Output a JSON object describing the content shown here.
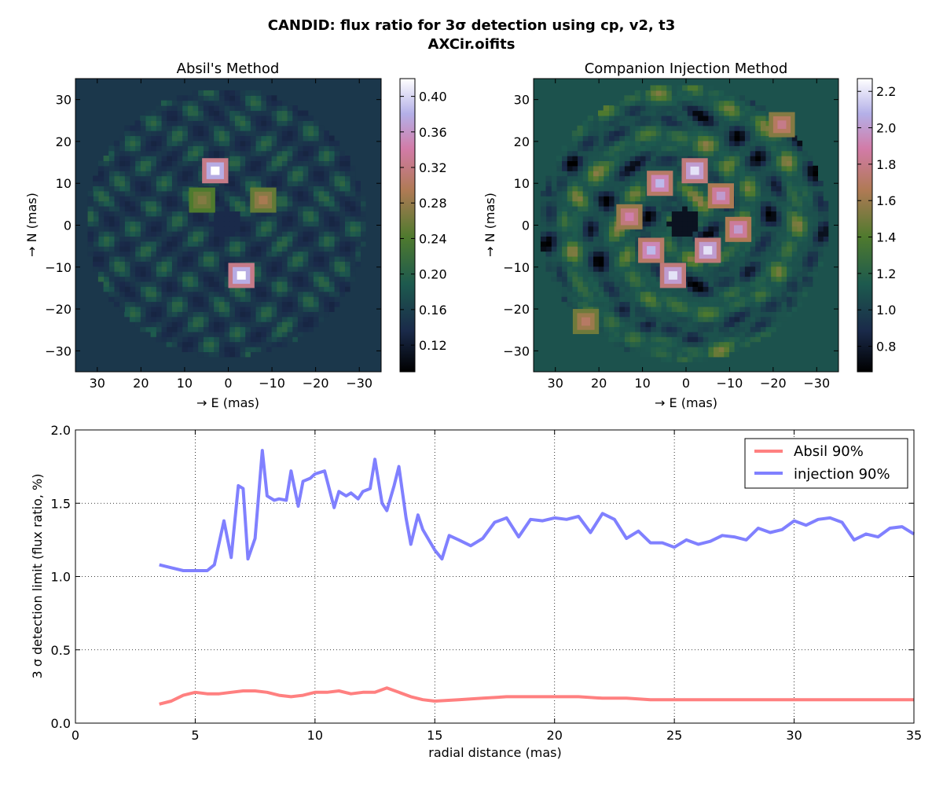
{
  "figure": {
    "suptitle_line1": "CANDID: flux ratio for 3σ detection using cp, v2, t3",
    "suptitle_line2": "AXCir.oifits"
  },
  "chart_data": [
    {
      "type": "heatmap",
      "title": "Absil's Method",
      "xlabel": "→ E (mas)",
      "ylabel": "→ N (mas)",
      "xlim": [
        35,
        -35
      ],
      "ylim": [
        -35,
        35
      ],
      "xticks": [
        30,
        20,
        10,
        0,
        -10,
        -20,
        -30
      ],
      "yticks": [
        30,
        20,
        10,
        0,
        -10,
        -20,
        -30
      ],
      "colorbar": {
        "range": [
          0.09,
          0.42
        ],
        "ticks": [
          0.12,
          0.16,
          0.2,
          0.24,
          0.28,
          0.32,
          0.36,
          0.4
        ]
      },
      "colormap": [
        "#000000",
        "#1a2a4a",
        "#1d5a4e",
        "#4f7a2e",
        "#b07a55",
        "#d27ba7",
        "#b4b0e8",
        "#ffffff"
      ],
      "background_value": 0.15,
      "field_radius_mas": 32,
      "inner_hole_radius_mas": 3.5,
      "peaks": [
        {
          "x": 3,
          "y": 13,
          "v": 0.42
        },
        {
          "x": -3,
          "y": -12,
          "v": 0.42
        },
        {
          "x": -8,
          "y": 6,
          "v": 0.29
        },
        {
          "x": 6,
          "y": 6,
          "v": 0.27
        }
      ]
    },
    {
      "type": "heatmap",
      "title": "Companion Injection Method",
      "xlabel": "→ E (mas)",
      "ylabel": "→ N (mas)",
      "xlim": [
        35,
        -35
      ],
      "ylim": [
        -35,
        35
      ],
      "xticks": [
        30,
        20,
        10,
        0,
        -10,
        -20,
        -30
      ],
      "yticks": [
        30,
        20,
        10,
        0,
        -10,
        -20,
        -30
      ],
      "colorbar": {
        "range": [
          0.66,
          2.27
        ],
        "ticks": [
          0.8,
          1.0,
          1.2,
          1.4,
          1.6,
          1.8,
          2.0,
          2.2
        ]
      },
      "colormap": [
        "#000000",
        "#1a2a4a",
        "#1d5a4e",
        "#4f7a2e",
        "#b07a55",
        "#d27ba7",
        "#b4b0e8",
        "#ffffff"
      ],
      "background_value": 1.1,
      "field_radius_mas": 33,
      "inner_hole_radius_mas": 3.5,
      "peaks": [
        {
          "x": -2,
          "y": 13,
          "v": 2.2
        },
        {
          "x": 6,
          "y": 10,
          "v": 2.1
        },
        {
          "x": -8,
          "y": 7,
          "v": 2.0
        },
        {
          "x": 13,
          "y": 2,
          "v": 1.9
        },
        {
          "x": -12,
          "y": -1,
          "v": 2.0
        },
        {
          "x": 8,
          "y": -6,
          "v": 2.1
        },
        {
          "x": -5,
          "y": -6,
          "v": 2.2
        },
        {
          "x": 3,
          "y": -12,
          "v": 2.2
        },
        {
          "x": -22,
          "y": 24,
          "v": 1.8
        },
        {
          "x": 23,
          "y": -23,
          "v": 1.7
        }
      ]
    },
    {
      "type": "line",
      "xlabel": "radial distance (mas)",
      "ylabel": "3 σ detection limit (flux ratio, %)",
      "xlim": [
        0,
        35
      ],
      "ylim": [
        0.0,
        2.0
      ],
      "xticks": [
        "0",
        "5",
        "10",
        "15",
        "20",
        "25",
        "30",
        "35"
      ],
      "yticks": [
        "0.0",
        "0.5",
        "1.0",
        "1.5",
        "2.0"
      ],
      "grid": true,
      "legend_position": "top-right",
      "series": [
        {
          "name": "Absil 90%",
          "color": "#ff8080",
          "x": [
            3.5,
            4.0,
            4.5,
            5.0,
            5.5,
            6.0,
            6.5,
            7.0,
            7.5,
            8.0,
            8.5,
            9.0,
            9.5,
            10.0,
            10.5,
            11.0,
            11.5,
            12.0,
            12.5,
            13.0,
            13.5,
            14.0,
            14.5,
            15.0,
            16.0,
            17.0,
            18.0,
            19.0,
            20.0,
            21.0,
            22.0,
            23.0,
            24.0,
            25.0,
            26.0,
            27.0,
            28.0,
            29.0,
            30.0,
            31.0,
            32.0,
            33.0,
            34.0,
            35.0
          ],
          "values": [
            0.13,
            0.15,
            0.19,
            0.21,
            0.2,
            0.2,
            0.21,
            0.22,
            0.22,
            0.21,
            0.19,
            0.18,
            0.19,
            0.21,
            0.21,
            0.22,
            0.2,
            0.21,
            0.21,
            0.24,
            0.21,
            0.18,
            0.16,
            0.15,
            0.16,
            0.17,
            0.18,
            0.18,
            0.18,
            0.18,
            0.17,
            0.17,
            0.16,
            0.16,
            0.16,
            0.16,
            0.16,
            0.16,
            0.16,
            0.16,
            0.16,
            0.16,
            0.16,
            0.16
          ]
        },
        {
          "name": "injection 90%",
          "color": "#8080ff",
          "x": [
            3.5,
            4.0,
            4.5,
            5.0,
            5.5,
            5.8,
            6.2,
            6.5,
            6.8,
            7.0,
            7.2,
            7.5,
            7.8,
            8.0,
            8.3,
            8.5,
            8.8,
            9.0,
            9.3,
            9.5,
            9.8,
            10.0,
            10.4,
            10.8,
            11.0,
            11.3,
            11.5,
            11.8,
            12.0,
            12.3,
            12.5,
            12.8,
            13.0,
            13.3,
            13.5,
            13.8,
            14.0,
            14.3,
            14.5,
            15.0,
            15.3,
            15.6,
            16.0,
            16.5,
            17.0,
            17.5,
            18.0,
            18.5,
            19.0,
            19.5,
            20.0,
            20.5,
            21.0,
            21.5,
            22.0,
            22.5,
            23.0,
            23.5,
            24.0,
            24.5,
            25.0,
            25.5,
            26.0,
            26.5,
            27.0,
            27.5,
            28.0,
            28.5,
            29.0,
            29.5,
            30.0,
            30.5,
            31.0,
            31.5,
            32.0,
            32.5,
            33.0,
            33.5,
            34.0,
            34.5,
            35.0
          ],
          "values": [
            1.08,
            1.06,
            1.04,
            1.04,
            1.04,
            1.08,
            1.38,
            1.13,
            1.62,
            1.6,
            1.12,
            1.26,
            1.86,
            1.55,
            1.52,
            1.53,
            1.52,
            1.72,
            1.48,
            1.65,
            1.67,
            1.7,
            1.72,
            1.47,
            1.58,
            1.55,
            1.57,
            1.53,
            1.58,
            1.6,
            1.8,
            1.5,
            1.45,
            1.62,
            1.75,
            1.4,
            1.22,
            1.42,
            1.32,
            1.18,
            1.12,
            1.28,
            1.25,
            1.21,
            1.26,
            1.37,
            1.4,
            1.27,
            1.39,
            1.38,
            1.4,
            1.39,
            1.41,
            1.3,
            1.43,
            1.39,
            1.26,
            1.31,
            1.23,
            1.23,
            1.2,
            1.25,
            1.22,
            1.24,
            1.28,
            1.27,
            1.25,
            1.33,
            1.3,
            1.32,
            1.38,
            1.35,
            1.39,
            1.4,
            1.37,
            1.25,
            1.29,
            1.27,
            1.33,
            1.34,
            1.29
          ]
        }
      ]
    }
  ]
}
